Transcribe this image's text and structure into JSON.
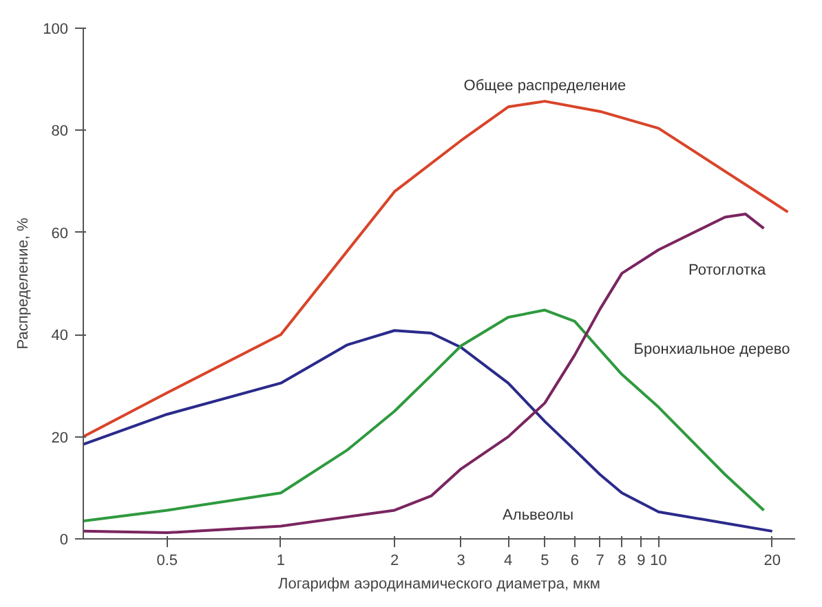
{
  "chart_data": {
    "type": "line",
    "xlabel": "Логарифм аэродинамического диаметра, мкм",
    "ylabel": "Распределение, %",
    "log": "x",
    "xlim": [
      0.3,
      23
    ],
    "ylim": [
      0,
      100
    ],
    "xticks": [
      0.5,
      1,
      2,
      3,
      4,
      5,
      6,
      7,
      8,
      9,
      10,
      20
    ],
    "yticks": [
      0,
      20,
      40,
      60,
      80,
      100
    ],
    "grid": false,
    "marker": "none",
    "line_style": "solid",
    "series": [
      {
        "name": "Общее распределение",
        "color": "#d9442a",
        "x": [
          0.3,
          0.5,
          1,
          2,
          3,
          4,
          5,
          7,
          10,
          20,
          22
        ],
        "values": [
          20,
          28.6,
          40,
          68,
          78,
          84.6,
          85.7,
          83.7,
          80.4,
          66,
          64
        ]
      },
      {
        "name": "Альвеолы",
        "color": "#2a2a8c",
        "x": [
          0.3,
          0.5,
          1,
          1.5,
          2,
          2.5,
          3,
          4,
          5,
          6,
          7,
          8,
          10,
          20
        ],
        "values": [
          18.5,
          24.4,
          30.5,
          38,
          40.8,
          40.3,
          37.5,
          30.5,
          23,
          17.4,
          12.6,
          9,
          5.3,
          1.5
        ]
      },
      {
        "name": "Бронхиальное дерево",
        "color": "#2e9a3e",
        "x": [
          0.3,
          0.5,
          1,
          1.5,
          2,
          2.5,
          3,
          4,
          5,
          6,
          7,
          8,
          10,
          15,
          19
        ],
        "values": [
          3.5,
          5.6,
          9,
          17.4,
          25,
          32,
          37.8,
          43.4,
          44.8,
          42.6,
          37,
          32.2,
          25.8,
          12.6,
          5.6
        ]
      },
      {
        "name": "Ротоглотка",
        "color": "#7a2560",
        "x": [
          0.3,
          0.5,
          1,
          2,
          2.5,
          3,
          4,
          5,
          6,
          7,
          8,
          10,
          15,
          17,
          19
        ],
        "values": [
          1.5,
          1.2,
          2.5,
          5.6,
          8.4,
          13.7,
          20,
          26.6,
          36,
          45,
          52,
          56.6,
          63,
          63.6,
          60.8
        ]
      }
    ]
  }
}
